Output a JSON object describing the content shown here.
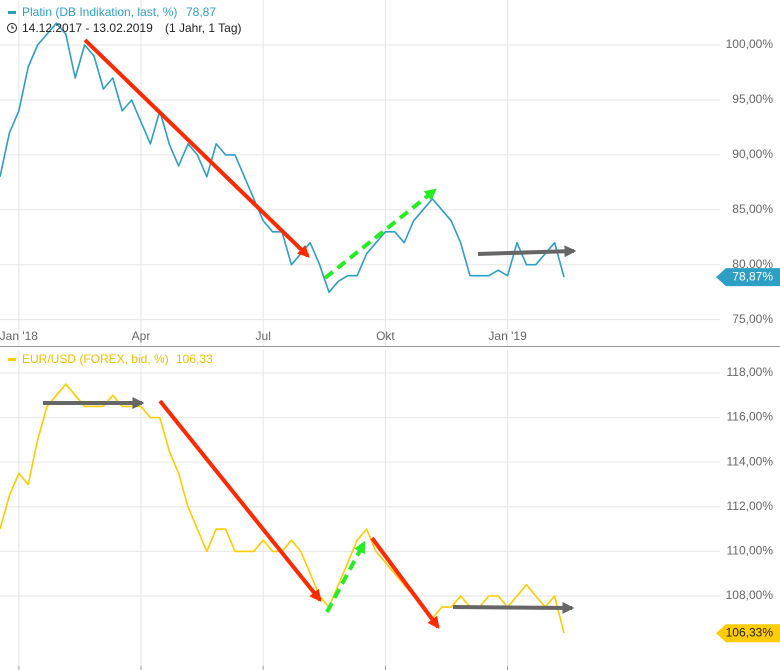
{
  "chart_data": [
    {
      "type": "line",
      "title": "Platin (DB Indikation, last, %)",
      "legend_value": "78,87",
      "subtitle": "14.12.2017 - 13.02.2019",
      "range_note": "(1 Jahr, 1 Tag)",
      "last_label": "78,87%",
      "categories": [
        null,
        null,
        "Jan '18",
        null,
        null,
        null,
        null,
        null,
        null,
        null,
        null,
        null,
        null,
        null,
        null,
        "Apr",
        null,
        null,
        null,
        null,
        null,
        null,
        null,
        null,
        null,
        null,
        null,
        null,
        "Jul",
        null,
        null,
        null,
        null,
        null,
        null,
        null,
        null,
        null,
        null,
        null,
        null,
        "Okt",
        null,
        null,
        null,
        null,
        null,
        null,
        null,
        null,
        null,
        null,
        null,
        null,
        "Jan '19",
        null,
        null,
        null,
        null,
        null,
        null
      ],
      "series": [
        {
          "name": "Platin (DB Indikation, last, %)",
          "color": "#2e9fc4",
          "values": [
            88,
            92,
            94,
            98,
            100,
            101,
            102,
            101,
            97,
            100,
            99,
            96,
            97,
            94,
            95,
            93,
            91,
            94,
            91,
            89,
            91,
            90,
            88,
            91,
            90,
            90,
            88,
            86,
            84,
            83,
            83,
            80,
            81,
            82,
            80,
            77.5,
            78.5,
            79,
            79,
            81,
            82,
            83,
            83,
            82,
            84,
            85,
            86,
            85,
            84,
            82,
            79,
            79,
            79,
            79.5,
            79,
            82,
            80,
            80,
            81,
            82,
            78.87
          ]
        }
      ],
      "ylim": [
        72.6,
        104.1
      ],
      "yticks": [
        {
          "value": 75,
          "label": "75,00%"
        },
        {
          "value": 80,
          "label": "80,00%"
        },
        {
          "value": 85,
          "label": "85,00%"
        },
        {
          "value": 90,
          "label": "90,00%"
        },
        {
          "value": 95,
          "label": "95,00%"
        },
        {
          "value": 100,
          "label": "100,00%"
        }
      ],
      "grid": true
    },
    {
      "type": "line",
      "title": "EUR/USD (FOREX, bid, %)",
      "legend_value": "106,33",
      "last_label": "106,33%",
      "series": [
        {
          "name": "EUR/USD (FOREX, bid, %)",
          "color": "#ffcc00",
          "values": [
            111,
            112.5,
            113.5,
            113,
            115,
            116.5,
            117,
            117.5,
            117,
            116.5,
            116.5,
            116.5,
            117,
            116.5,
            116.5,
            116.5,
            116,
            116,
            114.5,
            113.5,
            112,
            111,
            110,
            111,
            111,
            110,
            110,
            110,
            110.5,
            110,
            110,
            110.5,
            110,
            109,
            108,
            107.5,
            108.5,
            109.5,
            110.5,
            111,
            110,
            109.5,
            109,
            108.5,
            108,
            107.5,
            107,
            107.5,
            107.5,
            108,
            107.5,
            107.5,
            108,
            108,
            107.5,
            108,
            108.5,
            108,
            107.5,
            108,
            106.33
          ]
        }
      ],
      "ylim": [
        104.68,
        119.03
      ],
      "yticks": [
        {
          "value": 108,
          "label": "108,00%"
        },
        {
          "value": 110,
          "label": "110,00%"
        },
        {
          "value": 112,
          "label": "112,00%"
        },
        {
          "value": 114,
          "label": "114,00%"
        },
        {
          "value": 116,
          "label": "116,00%"
        },
        {
          "value": 118,
          "label": "118,00%"
        }
      ],
      "grid": true
    }
  ]
}
